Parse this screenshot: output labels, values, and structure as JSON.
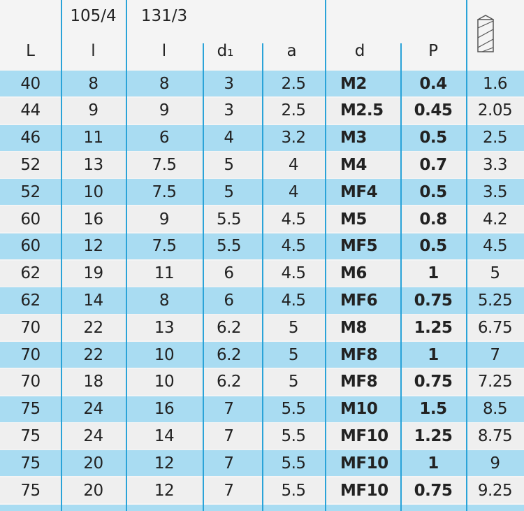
{
  "header": {
    "top": [
      "105/4",
      "131/3"
    ],
    "labels": [
      "L",
      "l",
      "l",
      "d₁",
      "a",
      "d",
      "P"
    ]
  },
  "table": {
    "rows": [
      [
        "40",
        "8",
        "8",
        "3",
        "2.5",
        "M2",
        "0.4",
        "1.6"
      ],
      [
        "44",
        "9",
        "9",
        "3",
        "2.5",
        "M2.5",
        "0.45",
        "2.05"
      ],
      [
        "46",
        "11",
        "6",
        "4",
        "3.2",
        "M3",
        "0.5",
        "2.5"
      ],
      [
        "52",
        "13",
        "7.5",
        "5",
        "4",
        "M4",
        "0.7",
        "3.3"
      ],
      [
        "52",
        "10",
        "7.5",
        "5",
        "4",
        "MF4",
        "0.5",
        "3.5"
      ],
      [
        "60",
        "16",
        "9",
        "5.5",
        "4.5",
        "M5",
        "0.8",
        "4.2"
      ],
      [
        "60",
        "12",
        "7.5",
        "5.5",
        "4.5",
        "MF5",
        "0.5",
        "4.5"
      ],
      [
        "62",
        "19",
        "11",
        "6",
        "4.5",
        "M6",
        "1",
        "5"
      ],
      [
        "62",
        "14",
        "8",
        "6",
        "4.5",
        "MF6",
        "0.75",
        "5.25"
      ],
      [
        "70",
        "22",
        "13",
        "6.2",
        "5",
        "M8",
        "1.25",
        "6.75"
      ],
      [
        "70",
        "22",
        "10",
        "6.2",
        "5",
        "MF8",
        "1",
        "7"
      ],
      [
        "70",
        "18",
        "10",
        "6.2",
        "5",
        "MF8",
        "0.75",
        "7.25"
      ],
      [
        "75",
        "24",
        "16",
        "7",
        "5.5",
        "M10",
        "1.5",
        "8.5"
      ],
      [
        "75",
        "24",
        "14",
        "7",
        "5.5",
        "MF10",
        "1.25",
        "8.75"
      ],
      [
        "75",
        "20",
        "12",
        "7",
        "5.5",
        "MF10",
        "1",
        "9"
      ],
      [
        "75",
        "20",
        "12",
        "7",
        "5.5",
        "MF10",
        "0.75",
        "9.25"
      ]
    ]
  }
}
